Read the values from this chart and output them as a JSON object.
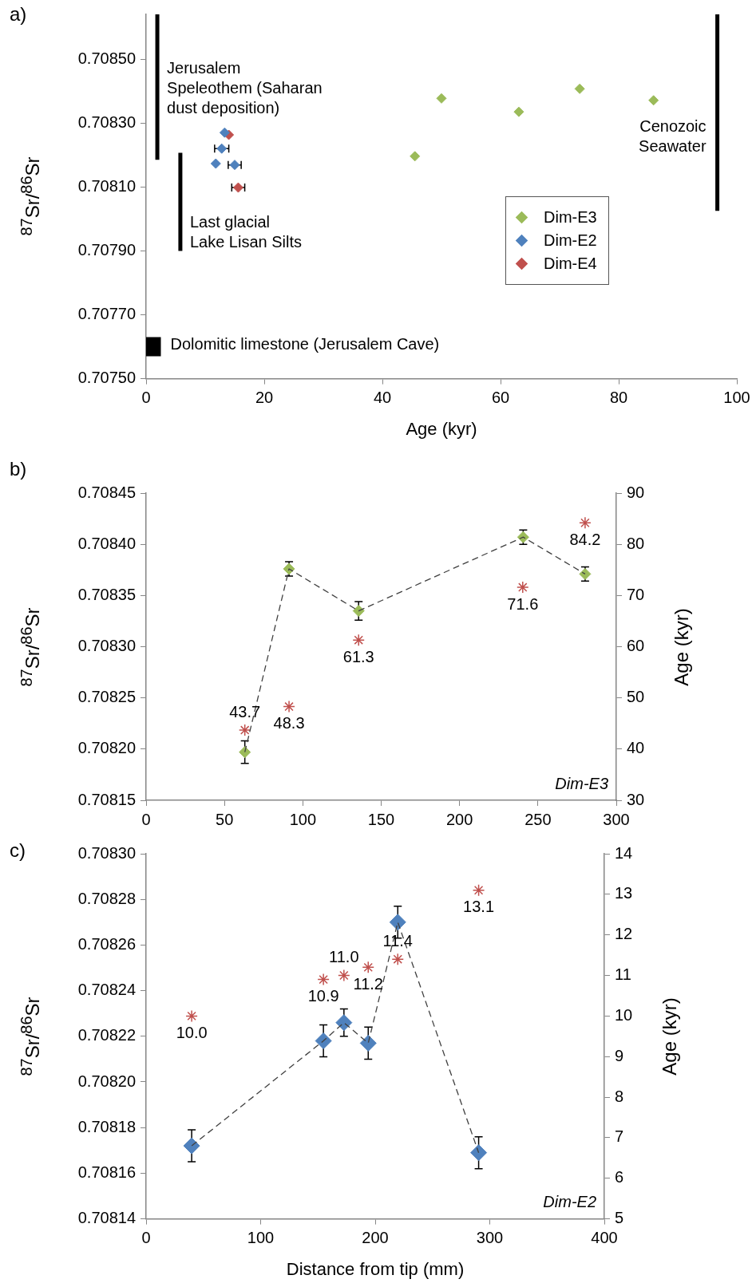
{
  "chart_data": [
    {
      "type": "scatter",
      "title": "a)",
      "xlabel": "Age (kyr)",
      "ylabel": "$^{87}$Sr/$^{86}$Sr",
      "xlim": [
        0,
        100
      ],
      "xticks": [
        0,
        20,
        40,
        60,
        80,
        100
      ],
      "ylim": [
        0.7075,
        0.70864
      ],
      "yticks": [
        {
          "value": 0.7075,
          "label": "0.70750"
        },
        {
          "value": 0.7077,
          "label": "0.70770"
        },
        {
          "value": 0.7079,
          "label": "0.70790"
        },
        {
          "value": 0.7081,
          "label": "0.70810"
        },
        {
          "value": 0.7083,
          "label": "0.70830"
        },
        {
          "value": 0.7085,
          "label": "0.70850"
        }
      ],
      "marker": "diamond",
      "legend": "right",
      "series": [
        {
          "name": "Dim-E3",
          "color": "#9bbb59",
          "x": [
            45.5,
            50.0,
            63.1,
            73.4,
            85.9
          ],
          "values": [
            0.708196,
            0.708377,
            0.708335,
            0.708407,
            0.708371
          ]
        },
        {
          "name": "Dim-E2",
          "color": "#4f81bd",
          "x": [
            13.3,
            12.8,
            11.8,
            15.0
          ],
          "values": [
            0.70827,
            0.70822,
            0.708173,
            0.708169
          ],
          "xerrors": [
            null,
            1.2,
            null,
            1.1
          ]
        },
        {
          "name": "Dim-E4",
          "color": "#c0504d",
          "x": [
            14.0,
            15.6
          ],
          "values": [
            0.708263,
            0.708098
          ],
          "xerrors": [
            null,
            1.1
          ]
        },
        {
          "type": "line",
          "color": "#000000",
          "marker": "none",
          "x": [
            1.9,
            1.9
          ],
          "values": [
            0.708185,
            0.70864
          ]
        },
        {
          "type": "line",
          "color": "#000000",
          "marker": "none",
          "x": [
            5.8,
            5.8
          ],
          "values": [
            0.7079,
            0.708207
          ]
        },
        {
          "type": "line",
          "color": "#000000",
          "marker": "none",
          "x": [
            96.7,
            96.7
          ],
          "values": [
            0.708025,
            0.70864
          ]
        },
        {
          "type": "area",
          "color": "#000000",
          "marker": "none",
          "x": [
            0,
            2.5,
            2.5,
            0
          ],
          "values": [
            0.70757,
            0.70757,
            0.70763,
            0.70763
          ]
        }
      ],
      "annotations": [
        {
          "text": "Jerusalem\nSpeleothem (Saharan\ndust deposition)",
          "x": 1.9,
          "y": 0.7084
        },
        {
          "text": "Last glacial\nLake Lisan Silts",
          "x": 5.8,
          "y": 0.70795
        },
        {
          "text": "Cenozoic\nSeawater",
          "x": 96.7,
          "y": 0.70825
        },
        {
          "text": "Dolomitic limestone (Jerusalem Cave)",
          "x": 2.5,
          "y": 0.7076
        }
      ]
    },
    {
      "type": "scatter",
      "title": "b)",
      "ylabel": "$^{87}$Sr/$^{86}$Sr",
      "y2label": "Age (kyr)",
      "xlim": [
        0,
        300
      ],
      "xticks": [
        0,
        50,
        100,
        150,
        200,
        250,
        300
      ],
      "ylim": [
        0.70815,
        0.70845
      ],
      "yticks": [
        0.70815,
        {
          "value": 0.7082,
          "label": "0.70820"
        },
        0.70825,
        {
          "value": 0.7083,
          "label": "0.70830"
        },
        0.70835,
        {
          "value": 0.7084,
          "label": "0.70840"
        },
        0.70845
      ],
      "y2lim": [
        30,
        90
      ],
      "y2ticks": [
        30,
        40,
        50,
        60,
        70,
        80,
        90
      ],
      "marker": "diamond",
      "series": [
        {
          "type": "line",
          "color": "#404040",
          "line_style": "dashed",
          "marker": "none",
          "x": [
            63,
            91.2,
            135.6,
            240.6,
            280.1
          ],
          "values": [
            0.708197,
            0.708376,
            0.708335,
            0.708407,
            0.708371
          ]
        },
        {
          "color": "#9bbb59",
          "x": [
            63,
            91.2,
            135.6,
            240.6,
            280.1
          ],
          "values": [
            0.708197,
            0.708376,
            0.708335,
            0.708407,
            0.708371
          ],
          "errors": [
            1.1e-05,
            7e-06,
            9e-06,
            7e-06,
            7e-06
          ]
        },
        {
          "color": "#c0504d",
          "marker": "cross",
          "axis": "y2",
          "x": [
            63,
            91.2,
            135.6,
            240.3,
            280.1
          ],
          "values": [
            43.7,
            48.3,
            61.3,
            71.6,
            84.2
          ],
          "value_labels": [
            "43.7",
            "48.3",
            "61.3",
            "71.6",
            "84.2"
          ]
        }
      ],
      "annotations": [
        "Dim-E3"
      ]
    },
    {
      "type": "scatter",
      "title": "c)",
      "xlabel": "Distance from tip (mm)",
      "ylabel": "$^{87}$Sr/$^{86}$Sr",
      "y2label": "Age (kyr)",
      "xlim": [
        0,
        400
      ],
      "xticks": [
        0,
        100,
        200,
        300,
        400
      ],
      "ylim": [
        0.70814,
        0.7083
      ],
      "yticks": [
        0.70814,
        0.70816,
        0.70818,
        {
          "value": 0.7082,
          "label": "0.70820"
        },
        0.70822,
        0.70824,
        0.70826,
        0.70828,
        {
          "value": 0.7083,
          "label": "0.70830"
        }
      ],
      "y2lim": [
        5,
        14
      ],
      "y2ticks": [
        5,
        6,
        7,
        8,
        9,
        10,
        11,
        12,
        13,
        14
      ],
      "marker": "diamond",
      "series": [
        {
          "type": "line",
          "color": "#404040",
          "line_style": "dashed",
          "marker": "none",
          "x": [
            39.8,
            154.8,
            172.7,
            193.9,
            219.7,
            290.3
          ],
          "values": [
            0.708172,
            0.708218,
            0.708226,
            0.708217,
            0.70827,
            0.708169
          ]
        },
        {
          "color": "#4f81bd",
          "x": [
            39.8,
            154.8,
            172.7,
            193.9,
            219.7,
            290.3
          ],
          "values": [
            0.708172,
            0.708218,
            0.708226,
            0.708217,
            0.70827,
            0.708169
          ],
          "errors": [
            7e-06,
            7e-06,
            6e-06,
            7e-06,
            7e-06,
            7e-06
          ]
        },
        {
          "color": "#c0504d",
          "marker": "cross",
          "axis": "y2",
          "x": [
            39.8,
            154.8,
            172.7,
            193.9,
            219.7,
            290.3
          ],
          "values": [
            10.0,
            10.9,
            11.0,
            11.2,
            11.4,
            13.1
          ],
          "value_labels": [
            "10.0",
            "10.9",
            "11.0",
            "11.2",
            "11.4",
            "13.1"
          ]
        }
      ],
      "annotations": [
        "Dim-E2"
      ]
    }
  ]
}
